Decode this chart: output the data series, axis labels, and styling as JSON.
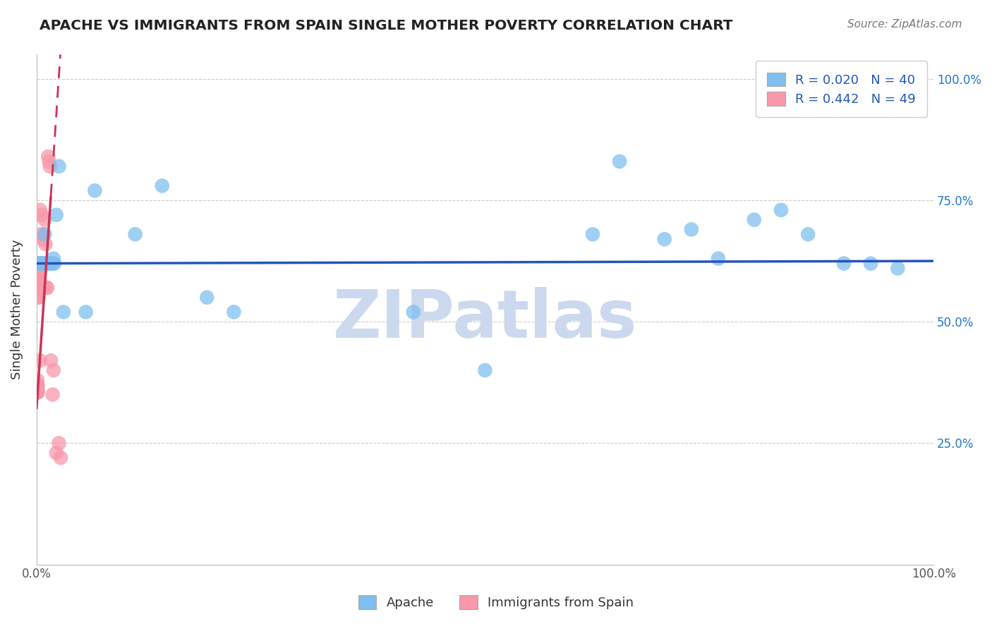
{
  "title": "APACHE VS IMMIGRANTS FROM SPAIN SINGLE MOTHER POVERTY CORRELATION CHART",
  "source": "Source: ZipAtlas.com",
  "ylabel": "Single Mother Poverty",
  "legend_apache": "R = 0.020   N = 40",
  "legend_immigrants": "R = 0.442   N = 49",
  "apache_color": "#7fbfef",
  "immigrants_color": "#f898aa",
  "trendline_apache_color": "#2255bb",
  "trendline_immigrants_color": "#cc3355",
  "watermark": "ZIPatlas",
  "watermark_color": "#ccd8ee",
  "apache_x": [
    0.003,
    0.004,
    0.005,
    0.006,
    0.007,
    0.008,
    0.009,
    0.01,
    0.011,
    0.012,
    0.013,
    0.014,
    0.015,
    0.016,
    0.017,
    0.018,
    0.019,
    0.02,
    0.022,
    0.025,
    0.03,
    0.055,
    0.065,
    0.11,
    0.14,
    0.19,
    0.22,
    0.42,
    0.5,
    0.62,
    0.65,
    0.7,
    0.73,
    0.76,
    0.8,
    0.83,
    0.86,
    0.9,
    0.93,
    0.96
  ],
  "apache_y": [
    0.62,
    0.62,
    0.62,
    0.62,
    0.62,
    0.62,
    0.68,
    0.62,
    0.62,
    0.62,
    0.62,
    0.62,
    0.62,
    0.62,
    0.62,
    0.62,
    0.63,
    0.62,
    0.72,
    0.82,
    0.52,
    0.52,
    0.77,
    0.68,
    0.78,
    0.55,
    0.52,
    0.52,
    0.4,
    0.68,
    0.83,
    0.67,
    0.69,
    0.63,
    0.71,
    0.73,
    0.68,
    0.62,
    0.62,
    0.61
  ],
  "immigrants_x": [
    0.001,
    0.001,
    0.001,
    0.001,
    0.001,
    0.001,
    0.001,
    0.001,
    0.001,
    0.001,
    0.001,
    0.001,
    0.001,
    0.001,
    0.001,
    0.001,
    0.002,
    0.002,
    0.002,
    0.002,
    0.002,
    0.002,
    0.002,
    0.003,
    0.003,
    0.003,
    0.004,
    0.004,
    0.004,
    0.004,
    0.004,
    0.005,
    0.005,
    0.006,
    0.007,
    0.008,
    0.009,
    0.01,
    0.011,
    0.012,
    0.013,
    0.014,
    0.015,
    0.016,
    0.018,
    0.019,
    0.022,
    0.025,
    0.027
  ],
  "immigrants_y": [
    0.355,
    0.355,
    0.355,
    0.355,
    0.355,
    0.355,
    0.355,
    0.355,
    0.355,
    0.36,
    0.36,
    0.365,
    0.365,
    0.37,
    0.37,
    0.38,
    0.6,
    0.61,
    0.55,
    0.58,
    0.6,
    0.62,
    0.55,
    0.56,
    0.58,
    0.62,
    0.42,
    0.6,
    0.62,
    0.73,
    0.58,
    0.68,
    0.61,
    0.72,
    0.67,
    0.68,
    0.71,
    0.66,
    0.57,
    0.57,
    0.84,
    0.83,
    0.82,
    0.42,
    0.35,
    0.4,
    0.23,
    0.25,
    0.22
  ],
  "xlim": [
    0.0,
    1.0
  ],
  "ylim": [
    0.0,
    1.05
  ],
  "apache_trend_y0": 0.62,
  "apache_trend_y1": 0.625,
  "immigrants_trend_x0": 0.0,
  "immigrants_trend_y0": 0.32,
  "immigrants_trend_x1": 0.016,
  "immigrants_trend_y1": 0.76
}
